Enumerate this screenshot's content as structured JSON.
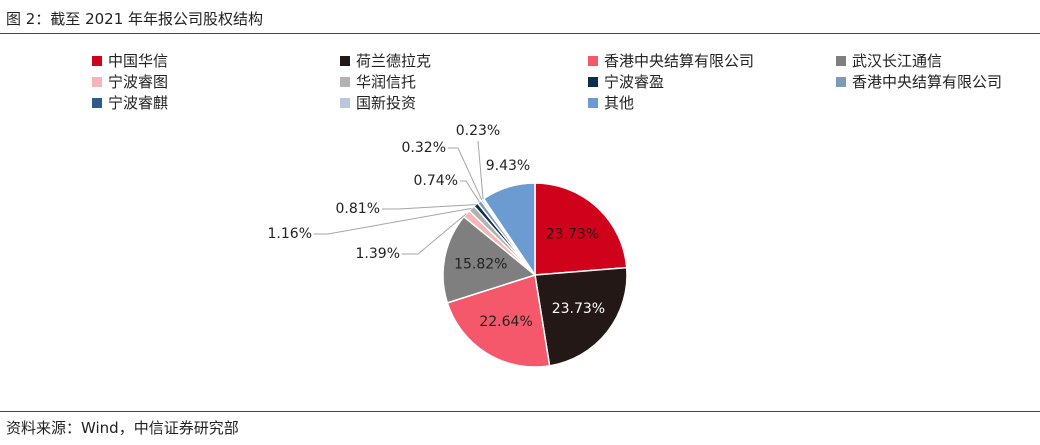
{
  "figure": {
    "title": "图 2：截至 2021 年年报公司股权结构",
    "source": "资料来源：Wind，中信证券研究部"
  },
  "chart_data": {
    "type": "pie",
    "title": "",
    "legend_position": "top",
    "slices": [
      {
        "name": "中国华信",
        "value": 23.73,
        "label": "23.73%",
        "color": "#d0021b"
      },
      {
        "name": "荷兰德拉克",
        "value": 23.73,
        "label": "23.73%",
        "color": "#231815"
      },
      {
        "name": "香港中央结算有限公司",
        "value": 22.64,
        "label": "22.64%",
        "color": "#f4586a"
      },
      {
        "name": "武汉长江通信",
        "value": 15.82,
        "label": "15.82%",
        "color": "#7f7f7f"
      },
      {
        "name": "宁波睿图",
        "value": 1.39,
        "label": "1.39%",
        "color": "#f4b6b6"
      },
      {
        "name": "华润信托",
        "value": 1.16,
        "label": "1.16%",
        "color": "#b3b3b3"
      },
      {
        "name": "宁波睿盈",
        "value": 0.81,
        "label": "0.81%",
        "color": "#0f2d4e"
      },
      {
        "name": "香港中央结算有限公司",
        "value": 0.74,
        "label": "0.74%",
        "color": "#7f99b8"
      },
      {
        "name": "宁波睿麒",
        "value": 0.32,
        "label": "0.32%",
        "color": "#2e5b8c"
      },
      {
        "name": "国新投资",
        "value": 0.23,
        "label": "0.23%",
        "color": "#b9c8dc"
      },
      {
        "name": "其他",
        "value": 9.43,
        "label": "9.43%",
        "color": "#6b9bd1"
      }
    ]
  }
}
